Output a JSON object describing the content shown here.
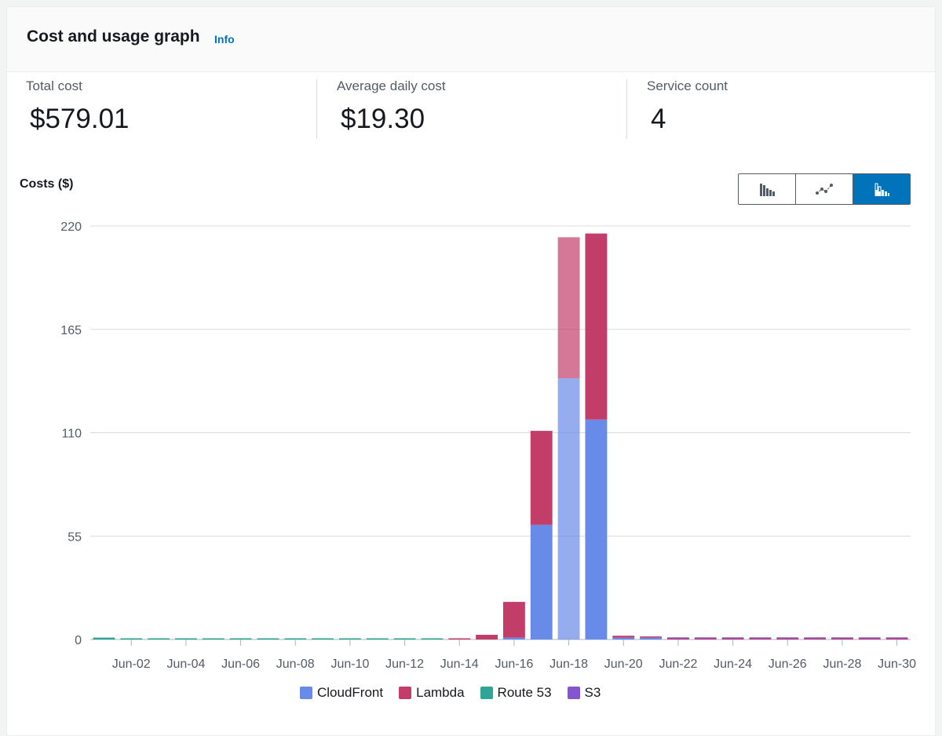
{
  "panel": {
    "title": "Cost and usage graph",
    "info": "Info"
  },
  "metrics": [
    {
      "label": "Total cost",
      "value": "$579.01"
    },
    {
      "label": "Average daily cost",
      "value": "$19.30"
    },
    {
      "label": "Service count",
      "value": "4"
    }
  ],
  "view_toggle": {
    "options": [
      "bar-chart-icon",
      "line-chart-icon",
      "stacked-bar-chart-icon"
    ],
    "selected": "stacked-bar-chart-icon"
  },
  "chart_data": {
    "type": "bar",
    "stacked": true,
    "title": "",
    "ylabel": "Costs ($)",
    "xlabel": "",
    "ylim": [
      0,
      220
    ],
    "yticks": [
      0,
      55,
      110,
      165,
      220
    ],
    "grid": true,
    "legend_position": "bottom",
    "categories": [
      "Jun-01",
      "Jun-02",
      "Jun-03",
      "Jun-04",
      "Jun-05",
      "Jun-06",
      "Jun-07",
      "Jun-08",
      "Jun-09",
      "Jun-10",
      "Jun-11",
      "Jun-12",
      "Jun-13",
      "Jun-14",
      "Jun-15",
      "Jun-16",
      "Jun-17",
      "Jun-18",
      "Jun-19",
      "Jun-20",
      "Jun-21",
      "Jun-22",
      "Jun-23",
      "Jun-24",
      "Jun-25",
      "Jun-26",
      "Jun-27",
      "Jun-28",
      "Jun-29",
      "Jun-30"
    ],
    "xtick_labels": [
      "Jun-02",
      "Jun-04",
      "Jun-06",
      "Jun-08",
      "Jun-10",
      "Jun-12",
      "Jun-14",
      "Jun-16",
      "Jun-18",
      "Jun-20",
      "Jun-22",
      "Jun-24",
      "Jun-26",
      "Jun-28",
      "Jun-30"
    ],
    "series": [
      {
        "name": "CloudFront",
        "color": "#688ae8",
        "values": [
          0,
          0,
          0,
          0,
          0,
          0,
          0,
          0,
          0,
          0,
          0,
          0,
          0,
          0,
          0,
          1,
          61,
          139,
          117,
          1,
          1,
          0,
          0,
          0,
          0,
          0,
          0,
          0,
          0,
          0
        ]
      },
      {
        "name": "Lambda",
        "color": "#c33d69",
        "values": [
          0,
          0,
          0,
          0,
          0,
          0,
          0,
          0,
          0,
          0,
          0,
          0,
          0,
          0.5,
          2.5,
          19,
          50,
          75,
          99,
          1,
          0.5,
          0.5,
          0.5,
          0.5,
          0.5,
          0.5,
          0.5,
          0.5,
          0.5,
          0.5
        ]
      },
      {
        "name": "Route 53",
        "color": "#2ea597",
        "values": [
          1,
          0.2,
          0.2,
          0.2,
          0.2,
          0.2,
          0.2,
          0.2,
          0.2,
          0.2,
          0.2,
          0.2,
          0.2,
          0,
          0,
          0,
          0,
          0,
          0,
          0,
          0,
          0,
          0,
          0,
          0,
          0,
          0,
          0,
          0,
          0
        ]
      },
      {
        "name": "S3",
        "color": "#8456ce",
        "values": [
          0,
          0,
          0,
          0,
          0,
          0,
          0,
          0,
          0,
          0,
          0,
          0,
          0,
          0,
          0,
          0,
          0,
          0,
          0,
          0,
          0,
          0.5,
          0.5,
          0.5,
          0.5,
          0.5,
          0.5,
          0.5,
          0.5,
          0.5
        ]
      }
    ],
    "highlighted_category": "Jun-18"
  }
}
